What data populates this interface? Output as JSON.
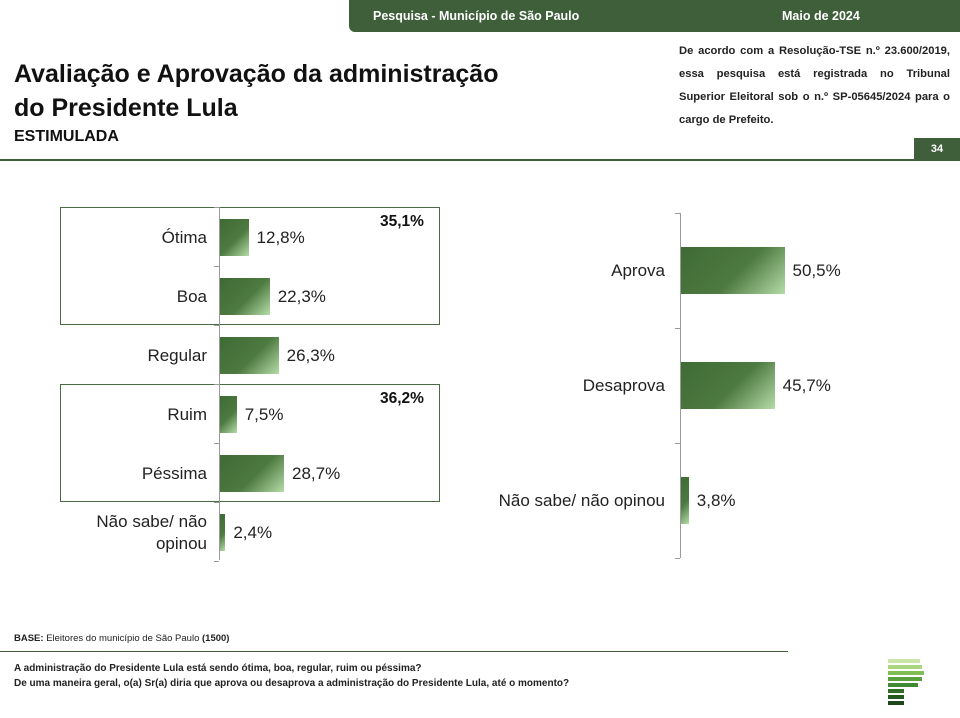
{
  "header": {
    "survey": "Pesquisa - Município de São Paulo",
    "date": "Maio de 2024",
    "page_number": "34"
  },
  "title_line1": "Avaliação e Aprovação da administração",
  "title_line2": "do Presidente Lula",
  "subtitle": "ESTIMULADA",
  "registration_note": "De acordo com a Resolução-TSE n.º 23.600/2019, essa pesquisa está registrada no Tribunal Superior Eleitoral sob o n.º SP-05645/2024 para o cargo de Prefeito.",
  "chart_data": [
    {
      "type": "bar",
      "orientation": "horizontal",
      "categories": [
        "Ótima",
        "Boa",
        "Regular",
        "Ruim",
        "Péssima",
        "Não sabe/ não opinou"
      ],
      "values": [
        12.8,
        22.3,
        26.3,
        7.5,
        28.7,
        2.4
      ],
      "value_labels": [
        "12,8%",
        "22,3%",
        "26,3%",
        "7,5%",
        "28,7%",
        "2,4%"
      ],
      "groups": [
        {
          "members": [
            "Ótima",
            "Boa"
          ],
          "total_label": "35,1%"
        },
        {
          "members": [
            "Ruim",
            "Péssima"
          ],
          "total_label": "36,2%"
        }
      ],
      "xlim": [
        0,
        100
      ],
      "grid": false
    },
    {
      "type": "bar",
      "orientation": "horizontal",
      "categories": [
        "Aprova",
        "Desaprova",
        "Não sabe/ não opinou"
      ],
      "values": [
        50.5,
        45.7,
        3.8
      ],
      "value_labels": [
        "50,5%",
        "45,7%",
        "3,8%"
      ],
      "xlim": [
        0,
        100
      ],
      "grid": false
    }
  ],
  "base_label": "BASE:",
  "base_text": "Eleitores do município de São Paulo",
  "base_count": "(1500)",
  "questions": [
    "A administração do Presidente Lula está sendo ótima, boa, regular, ruim ou péssima?",
    "De uma maneira geral, o(a) Sr(a) diria que aprova ou desaprova a administração do Presidente Lula, até o momento?"
  ],
  "colors": {
    "brand_green": "#3f5f3a",
    "bar_dark": "#3f6a35",
    "bar_light": "#b5dca8"
  }
}
